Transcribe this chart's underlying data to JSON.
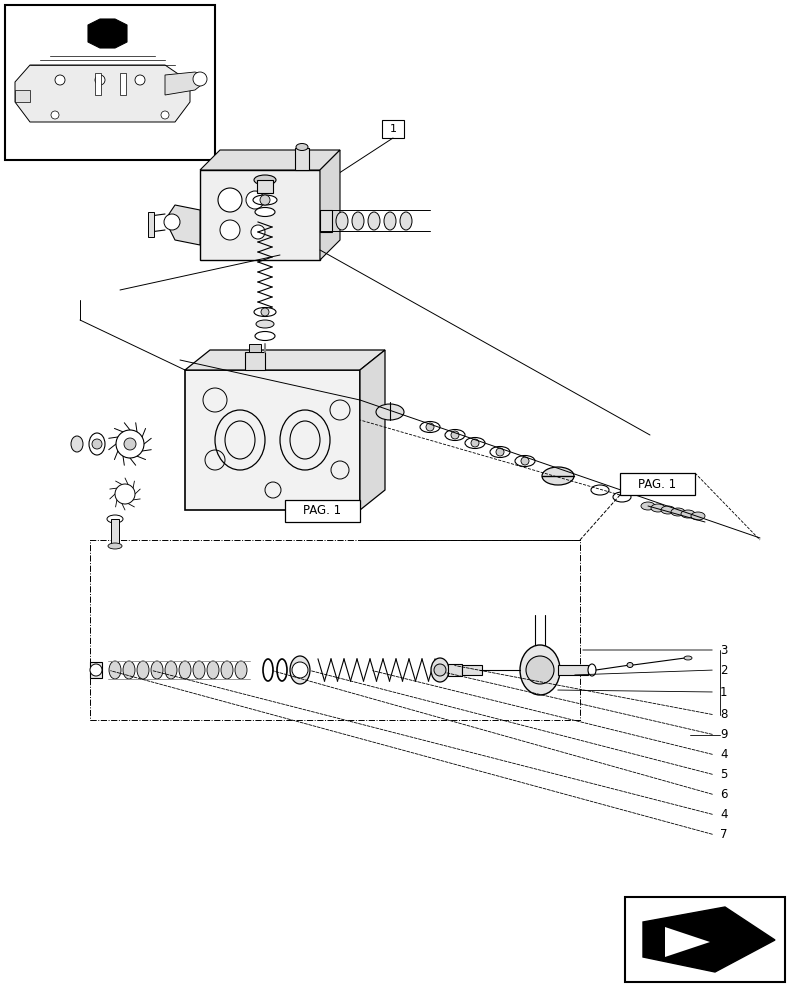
{
  "bg_color": "#ffffff",
  "lc": "#000000",
  "gray1": "#e8e8e8",
  "gray2": "#d0d0d0",
  "gray3": "#c0c0c0",
  "pag1_label": "PAG. 1",
  "figsize": [
    8.12,
    10.0
  ],
  "dpi": 100
}
